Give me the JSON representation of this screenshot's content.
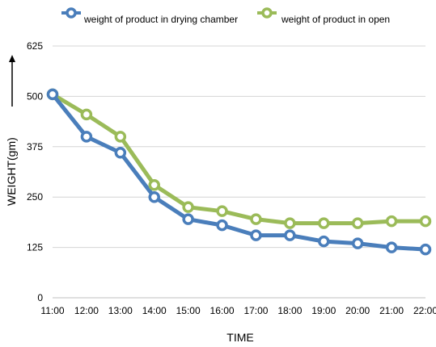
{
  "chart_data": {
    "type": "line",
    "x": [
      "11:00",
      "12:00",
      "13:00",
      "14:00",
      "15:00",
      "16:00",
      "17:00",
      "18:00",
      "19:00",
      "20:00",
      "21:00",
      "22:00"
    ],
    "series": [
      {
        "name": "weight of product  in drying chamber",
        "color": "#4A7EBB",
        "values": [
          505,
          400,
          360,
          250,
          195,
          180,
          155,
          155,
          140,
          135,
          125,
          120
        ]
      },
      {
        "name": "weight of  product in open",
        "color": "#9BBB59",
        "values": [
          505,
          455,
          400,
          280,
          225,
          215,
          195,
          185,
          185,
          185,
          190,
          190
        ]
      }
    ],
    "xlabel": "TIME",
    "ylabel": "WEIGHT(gm)",
    "y_ticks": [
      0,
      125,
      250,
      375,
      500,
      625
    ],
    "ylim": [
      0,
      625
    ],
    "grid": true,
    "legend_position": "top"
  }
}
